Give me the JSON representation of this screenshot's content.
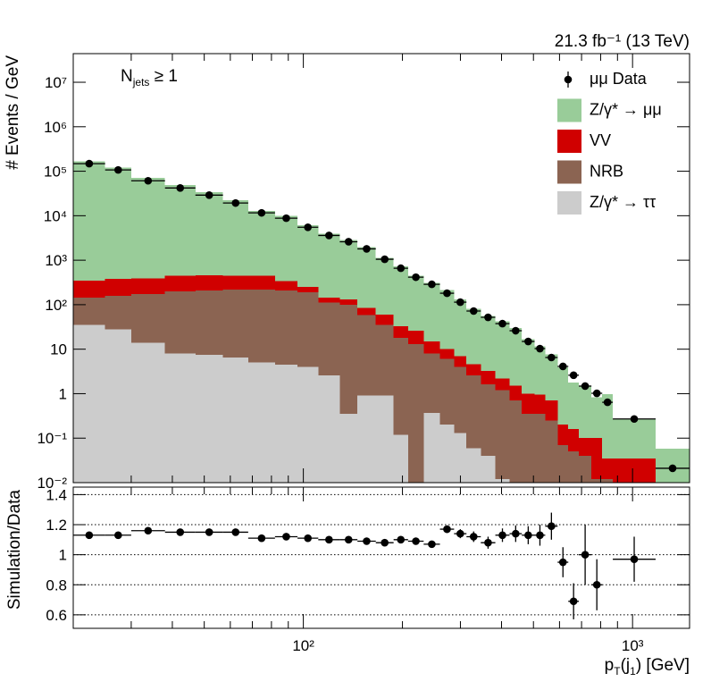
{
  "chart_data": {
    "type": "stacked-histogram",
    "lumi": "21.3 fb⁻¹ (13 TeV)",
    "annotation": {
      "main": "N",
      "sub": "jets",
      "rest": " ≥ 1"
    },
    "ylabel": "# Events / GeV",
    "xlabel": {
      "main": "p",
      "sub": "T",
      "mid": "(j",
      "sub2": "1",
      "rest": ") [GeV]"
    },
    "xlog": true,
    "ylog": true,
    "legend": "top-right",
    "bins": [
      20,
      25,
      30,
      38,
      47,
      57,
      68,
      82,
      96,
      111,
      129,
      146,
      166,
      188,
      208,
      232,
      260,
      287,
      313,
      346,
      383,
      423,
      461,
      504,
      543,
      592,
      638,
      687,
      750,
      809,
      871,
      1175,
      1490
    ],
    "xlim": [
      20,
      1490
    ],
    "xticks": [
      {
        "value": 100,
        "label": "10²"
      },
      {
        "value": 1000,
        "label": "10³"
      }
    ],
    "xminorticks": [
      30,
      40,
      50,
      60,
      70,
      80,
      90,
      200,
      300,
      400,
      500,
      600,
      700,
      800,
      900
    ],
    "ylim": [
      0.01,
      44000000
    ],
    "yticks": [
      {
        "value": 0.01,
        "label": "10⁻²"
      },
      {
        "value": 0.1,
        "label": "10⁻¹"
      },
      1,
      10,
      {
        "value": 100,
        "label": "10²"
      },
      {
        "value": 1000,
        "label": "10³"
      },
      {
        "value": 10000,
        "label": "10⁴"
      },
      {
        "value": 100000,
        "label": "10⁵"
      },
      {
        "value": 1000000,
        "label": "10⁶"
      },
      {
        "value": 10000000,
        "label": "10⁷"
      }
    ],
    "series": [
      {
        "name": "Z/γ* → ττ",
        "color": "#cccccc",
        "values": [
          35,
          28,
          14,
          8,
          7.5,
          6.5,
          5,
          4.5,
          4,
          2.6,
          0.35,
          0.9,
          0.9,
          0.12,
          0,
          0.37,
          0.2,
          0.13,
          0.06,
          0.04,
          0.012,
          0,
          0,
          0,
          0,
          0,
          0,
          0,
          0,
          0,
          0,
          0
        ]
      },
      {
        "name": "NRB",
        "color": "#8b6452",
        "values": [
          110,
          130,
          160,
          190,
          200,
          210,
          215,
          205,
          185,
          110,
          100,
          57,
          34,
          18,
          13,
          7.6,
          5.8,
          3.9,
          2.5,
          1.6,
          1.2,
          0.7,
          0.35,
          0.35,
          0.25,
          0.07,
          0.05,
          0.04,
          0.012,
          0.012,
          0,
          0
        ]
      },
      {
        "name": "VV",
        "color": "#d00000",
        "values": [
          200,
          220,
          220,
          250,
          250,
          230,
          230,
          130,
          60,
          30,
          30,
          27,
          25,
          15,
          13,
          7,
          4,
          3,
          2,
          1.6,
          1,
          0.8,
          0.65,
          0.6,
          0.45,
          0.13,
          0.11,
          0.06,
          0.09,
          0.023,
          0.035,
          0
        ]
      },
      {
        "name": "Z/γ* → μμ",
        "color": "#99cc99",
        "values": [
          166000,
          121000,
          70600,
          48000,
          33000,
          21800,
          12400,
          9520,
          5850,
          3810,
          2730,
          1870,
          1070,
          690,
          426,
          291,
          202,
          123,
          76,
          52.9,
          40.2,
          28.1,
          15.8,
          10.7,
          7.0,
          3.7,
          1.6,
          1.38,
          0.72,
          0.95,
          0.23,
          0.058
        ]
      }
    ],
    "data": {
      "name": "μμ Data",
      "color": "#000000",
      "values": [
        148000,
        107000,
        61000,
        42000,
        29000,
        19300,
        11600,
        8800,
        5500,
        3600,
        2600,
        1800,
        1050,
        660,
        415,
        287,
        181,
        114,
        72,
        52,
        37.5,
        26,
        14.9,
        10.3,
        6.5,
        4.1,
        2.6,
        1.48,
        1.02,
        0.64,
        0.27,
        0.021
      ]
    },
    "ratio": {
      "ylabel": "Simulation/Data",
      "ylim": [
        0.51,
        1.45
      ],
      "yticks": [
        0.6,
        0.8,
        1,
        1.2,
        1.4
      ],
      "grid": true,
      "values": [
        1.13,
        1.13,
        1.16,
        1.15,
        1.15,
        1.15,
        1.11,
        1.12,
        1.11,
        1.1,
        1.1,
        1.09,
        1.08,
        1.1,
        1.09,
        1.07,
        1.17,
        1.14,
        1.12,
        1.08,
        1.13,
        1.14,
        1.13,
        1.13,
        1.19,
        0.95,
        0.69,
        1.0,
        0.8,
        null,
        0.97,
        null
      ],
      "errors": [
        0.005,
        0.005,
        0.005,
        0.005,
        0.005,
        0.006,
        0.007,
        0.008,
        0.009,
        0.01,
        0.012,
        0.013,
        0.015,
        0.017,
        0.02,
        0.022,
        0.025,
        0.03,
        0.035,
        0.04,
        0.045,
        0.055,
        0.06,
        0.07,
        0.09,
        0.1,
        0.12,
        0.2,
        0.17,
        null,
        0.15,
        null
      ]
    }
  }
}
